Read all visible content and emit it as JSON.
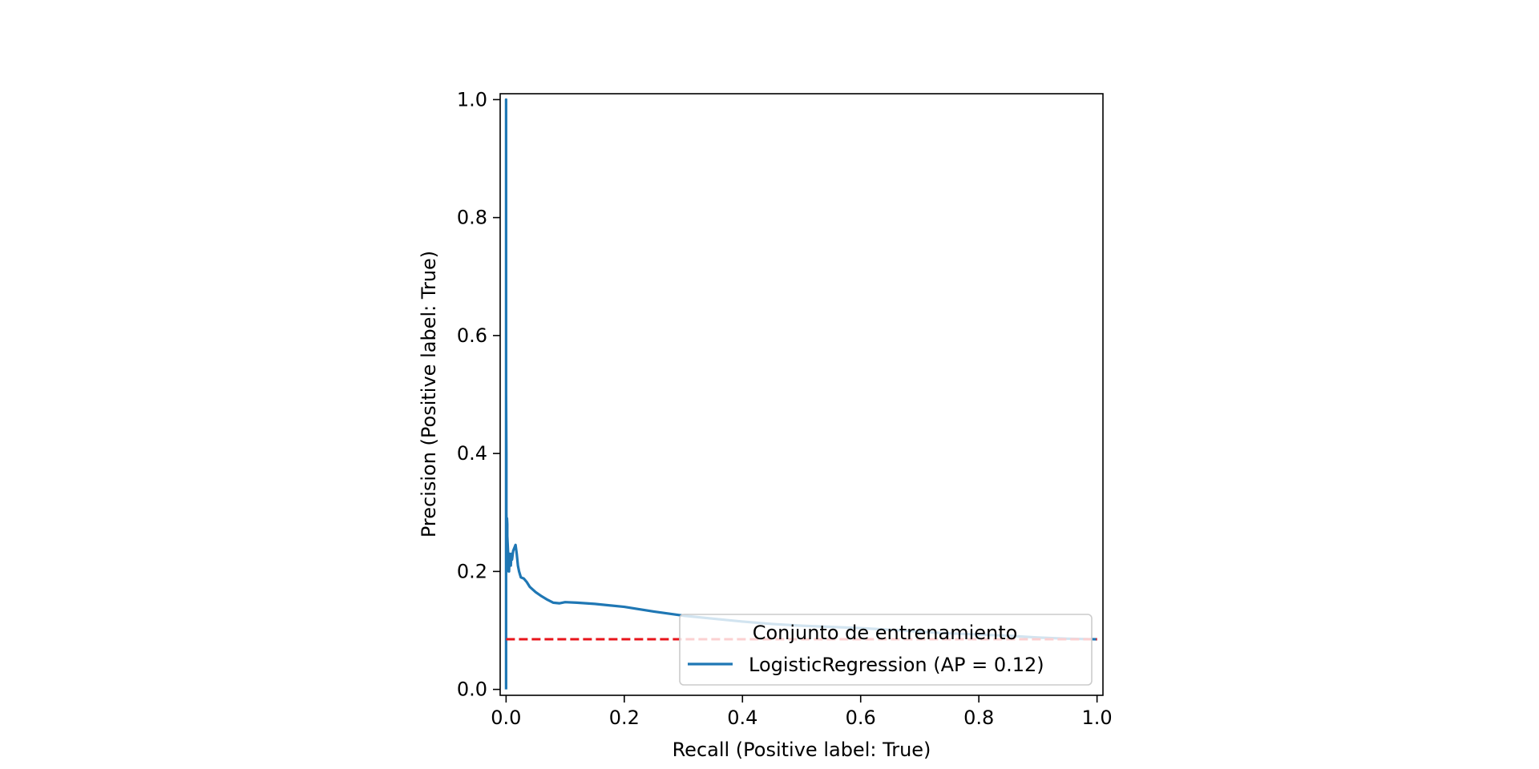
{
  "chart_data": {
    "type": "line",
    "title": "",
    "xlabel": "Recall (Positive label: True)",
    "ylabel": "Precision (Positive label: True)",
    "xlim": [
      -0.01,
      1.01
    ],
    "ylim": [
      -0.01,
      1.01
    ],
    "xticks": [
      0.0,
      0.2,
      0.4,
      0.6,
      0.8,
      1.0
    ],
    "xtick_labels": [
      "0.0",
      "0.2",
      "0.4",
      "0.6",
      "0.8",
      "1.0"
    ],
    "yticks": [
      0.0,
      0.2,
      0.4,
      0.6,
      0.8,
      1.0
    ],
    "ytick_labels": [
      "0.0",
      "0.2",
      "0.4",
      "0.6",
      "0.8",
      "1.0"
    ],
    "grid": false,
    "legend": {
      "title": "Conjunto de entrenamiento",
      "placement": "lower right"
    },
    "series": [
      {
        "name": "LogisticRegression (AP = 0.12)",
        "color": "#1f77b4",
        "style": "solid",
        "x": [
          0.0,
          0.0,
          0.0,
          0.0005,
          0.0005,
          0.001,
          0.001,
          0.0015,
          0.002,
          0.002,
          0.003,
          0.004,
          0.005,
          0.006,
          0.007,
          0.008,
          0.009,
          0.01,
          0.012,
          0.014,
          0.016,
          0.018,
          0.02,
          0.022,
          0.025,
          0.03,
          0.035,
          0.04,
          0.05,
          0.06,
          0.07,
          0.08,
          0.09,
          0.1,
          0.12,
          0.15,
          0.2,
          0.25,
          0.3,
          0.35,
          0.4,
          0.45,
          0.5,
          0.55,
          0.6,
          0.65,
          0.7,
          0.75,
          0.8,
          0.85,
          0.9,
          0.95,
          1.0
        ],
        "y": [
          0.0,
          1.0,
          0.5,
          0.4,
          0.3,
          0.25,
          0.2,
          0.29,
          0.28,
          0.26,
          0.24,
          0.22,
          0.2,
          0.23,
          0.22,
          0.21,
          0.23,
          0.22,
          0.235,
          0.24,
          0.245,
          0.23,
          0.21,
          0.2,
          0.19,
          0.188,
          0.182,
          0.174,
          0.165,
          0.158,
          0.152,
          0.147,
          0.146,
          0.148,
          0.147,
          0.145,
          0.14,
          0.132,
          0.125,
          0.12,
          0.115,
          0.111,
          0.108,
          0.106,
          0.104,
          0.101,
          0.098,
          0.095,
          0.093,
          0.091,
          0.088,
          0.086,
          0.085
        ]
      },
      {
        "name": "",
        "color": "#e8141b",
        "style": "dashed",
        "x": [
          0.0,
          1.0
        ],
        "y": [
          0.085,
          0.085
        ]
      }
    ]
  }
}
